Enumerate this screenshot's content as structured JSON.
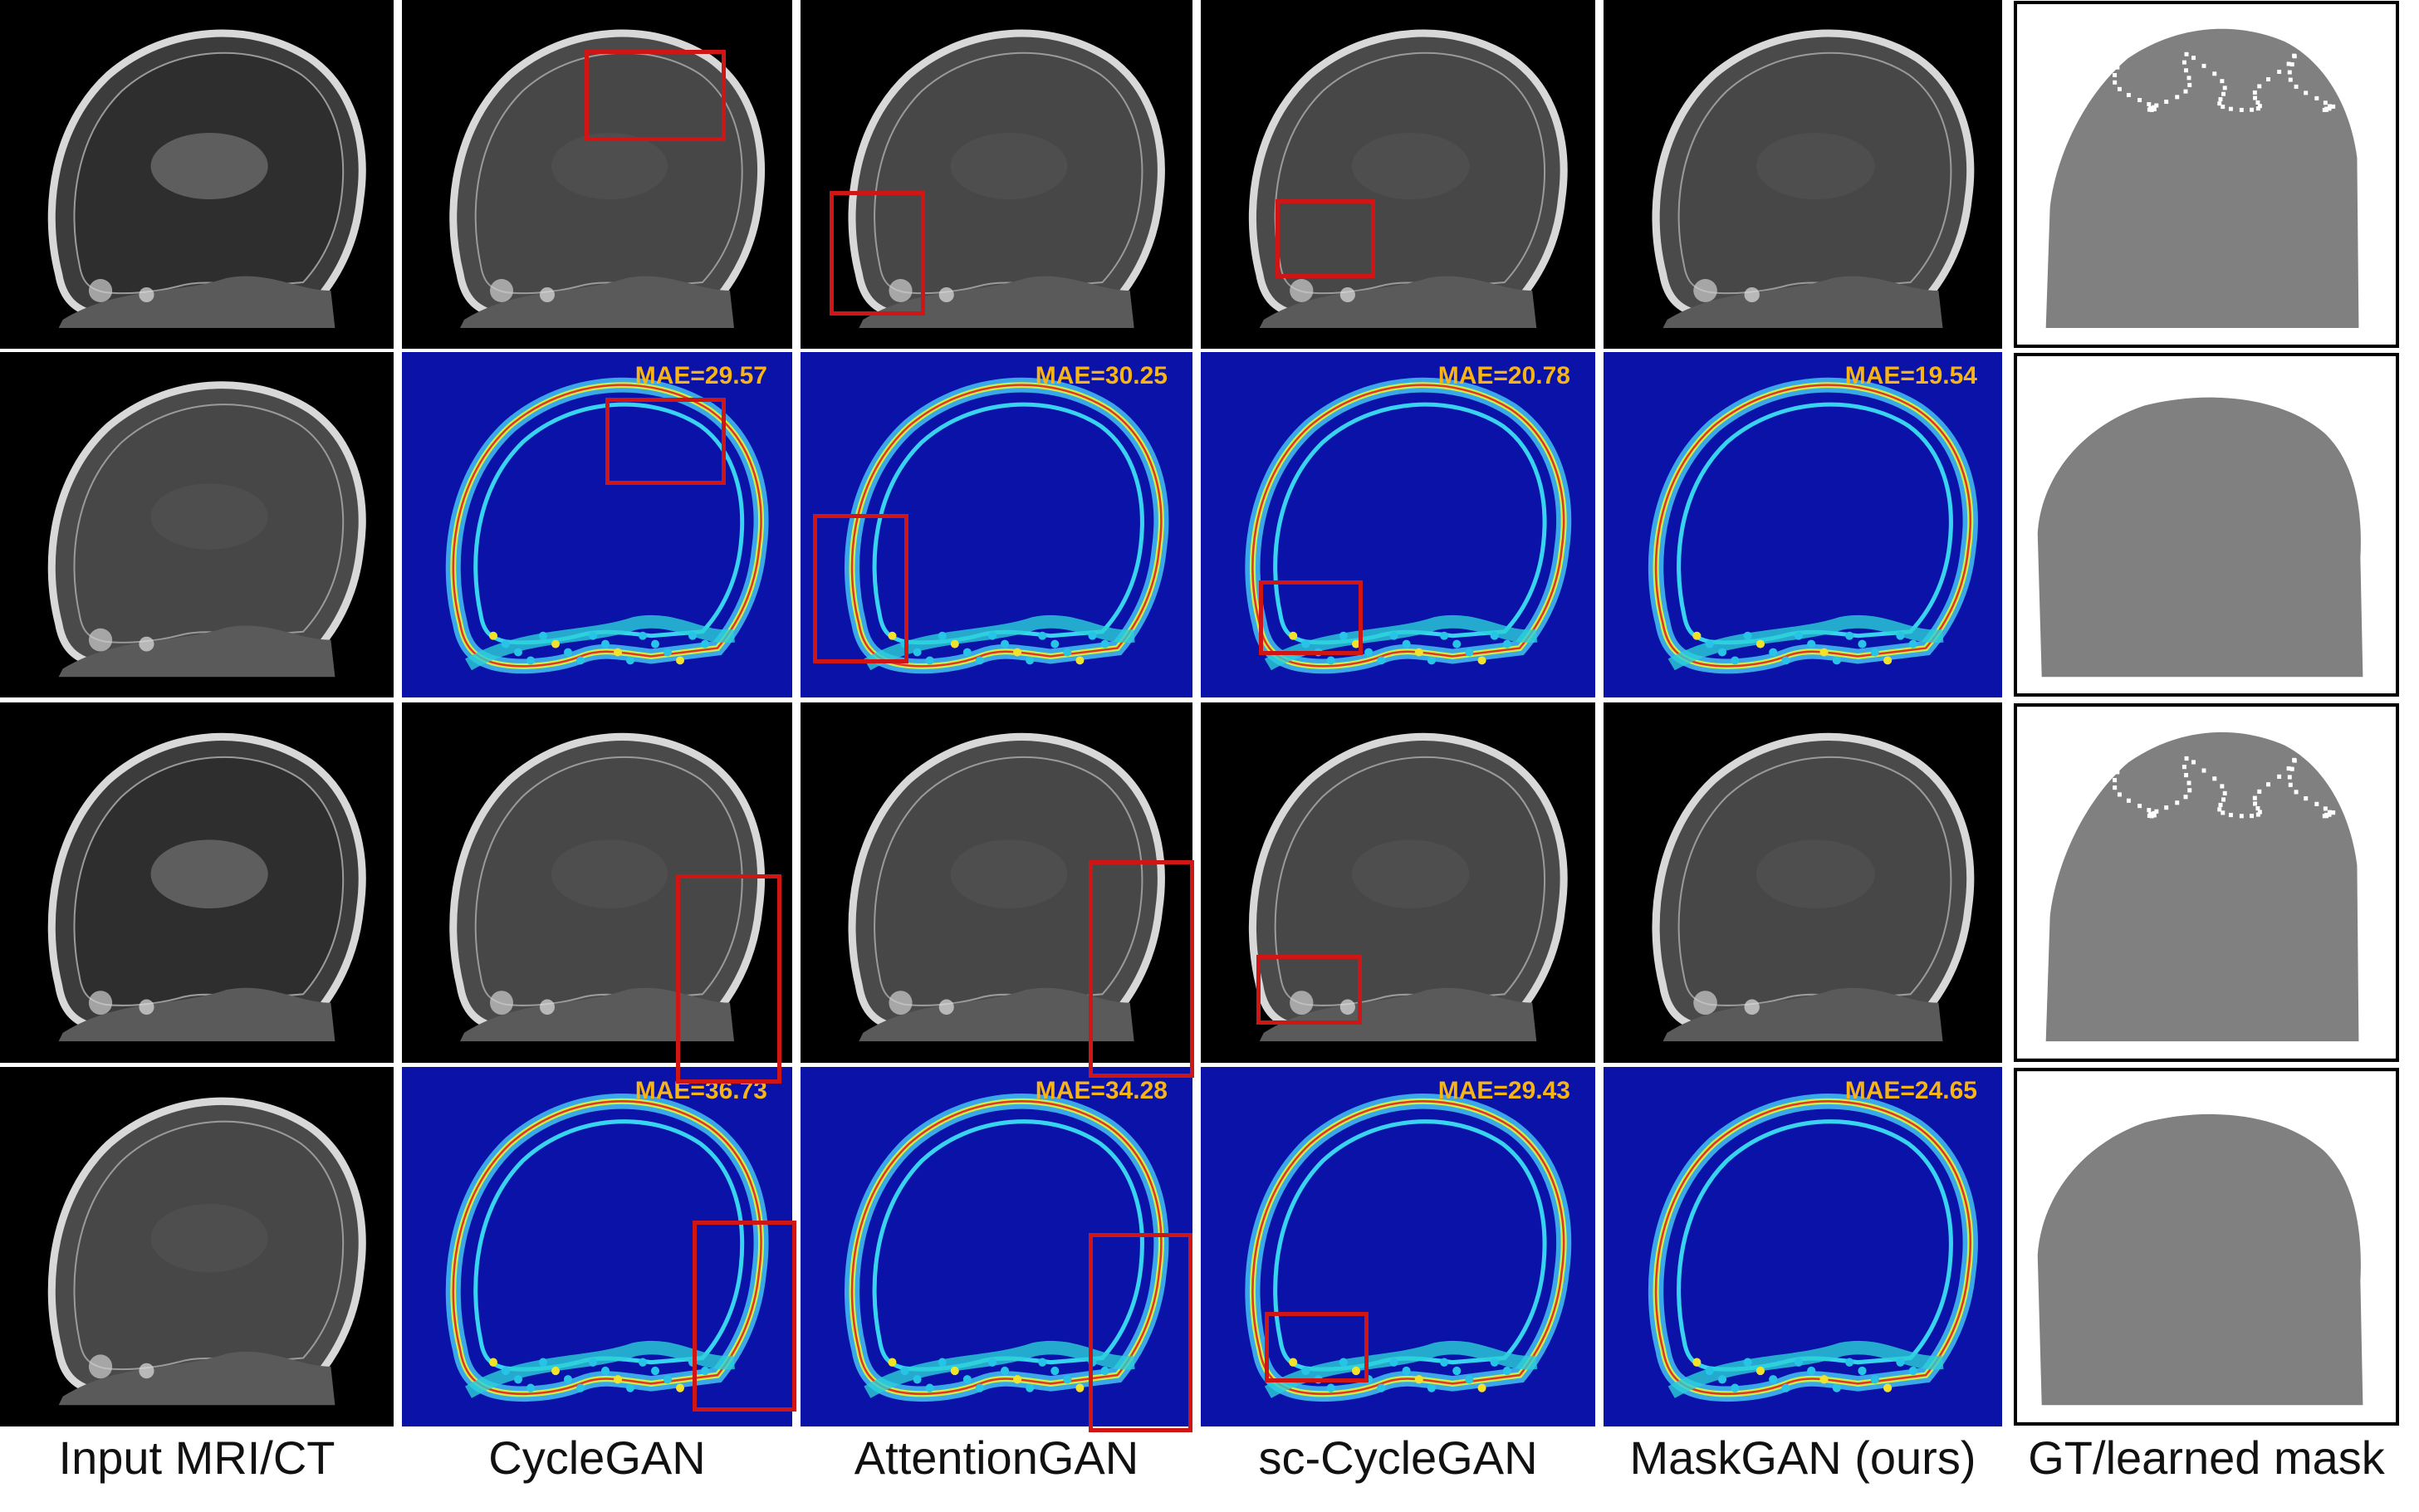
{
  "figure": {
    "columns": [
      {
        "label": "Input MRI/CT"
      },
      {
        "label": "CycleGAN"
      },
      {
        "label": "AttentionGAN"
      },
      {
        "label": "sc-CycleGAN"
      },
      {
        "label": "MaskGAN (ours)"
      },
      {
        "label": "GT/learned mask"
      }
    ],
    "rows": [
      {
        "kind": "image",
        "maes": [
          "",
          "",
          "",
          "",
          "",
          ""
        ]
      },
      {
        "kind": "error",
        "maes": [
          "",
          "MAE=29.57",
          "MAE=30.25",
          "MAE=20.78",
          "MAE=19.54",
          ""
        ]
      },
      {
        "kind": "image",
        "maes": [
          "",
          "",
          "",
          "",
          "",
          ""
        ]
      },
      {
        "kind": "error",
        "maes": [
          "",
          "MAE=36.73",
          "MAE=34.28",
          "MAE=29.43",
          "MAE=24.65",
          ""
        ]
      }
    ],
    "colors": {
      "scan_background": "#000000",
      "error_background": "#0a12a8",
      "roi_box": "#d01515",
      "mae_text": "#f6b417",
      "mask_fill": "#808080",
      "mask_border": "#000000"
    }
  }
}
